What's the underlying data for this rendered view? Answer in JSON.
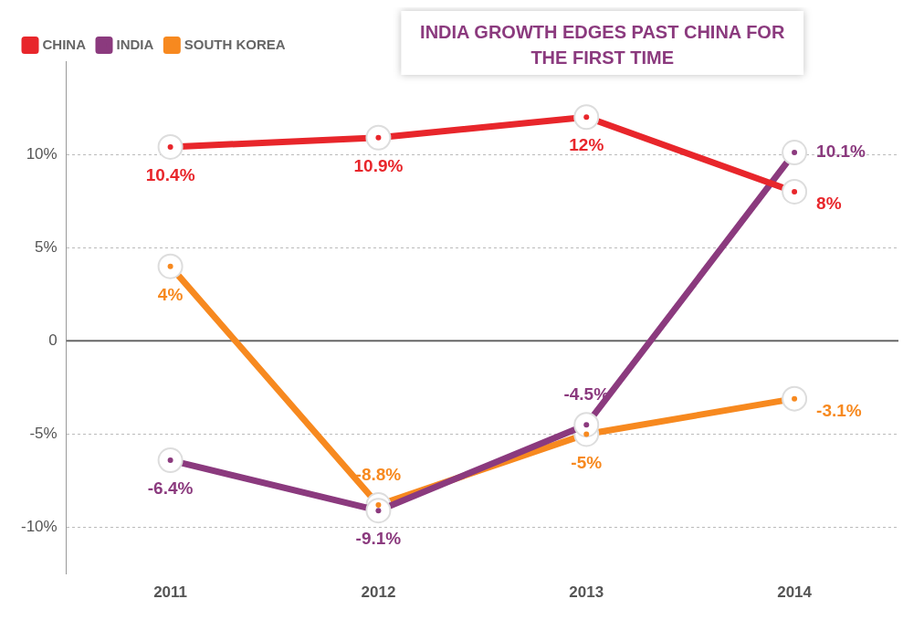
{
  "chart_data": {
    "type": "line",
    "categories": [
      "2011",
      "2012",
      "2013",
      "2014"
    ],
    "series": [
      {
        "name": "CHINA",
        "color": "#e8262b",
        "values": [
          10.4,
          10.9,
          12,
          8
        ],
        "value_labels": [
          "10.4%",
          "10.9%",
          "12%",
          "8%"
        ]
      },
      {
        "name": "INDIA",
        "color": "#8b3a7e",
        "values": [
          -6.4,
          -9.1,
          -4.5,
          10.1
        ],
        "value_labels": [
          "-6.4%",
          "-9.1%",
          "-4.5%",
          "10.1%"
        ]
      },
      {
        "name": "SOUTH KOREA",
        "color": "#f7891f",
        "values": [
          4,
          -8.8,
          -5,
          -3.1
        ],
        "value_labels": [
          "4%",
          "-8.8%",
          "-5%",
          "-3.1%"
        ]
      }
    ],
    "ylim": [
      -12.5,
      15
    ],
    "yticks": [
      {
        "value": -10,
        "label": "-10%"
      },
      {
        "value": -5,
        "label": "-5%"
      },
      {
        "value": 0,
        "label": "0"
      },
      {
        "value": 5,
        "label": "5%"
      },
      {
        "value": 10,
        "label": "10%"
      }
    ],
    "annotations": [
      "INDIA GROWTH EDGES PAST CHINA FOR THE FIRST TIME"
    ],
    "ref_lines": [
      {
        "axis": "y",
        "value": 0,
        "color": "#666666"
      }
    ],
    "grid": "y",
    "legend": "top left",
    "marker": "circle",
    "line_style": "solid"
  }
}
